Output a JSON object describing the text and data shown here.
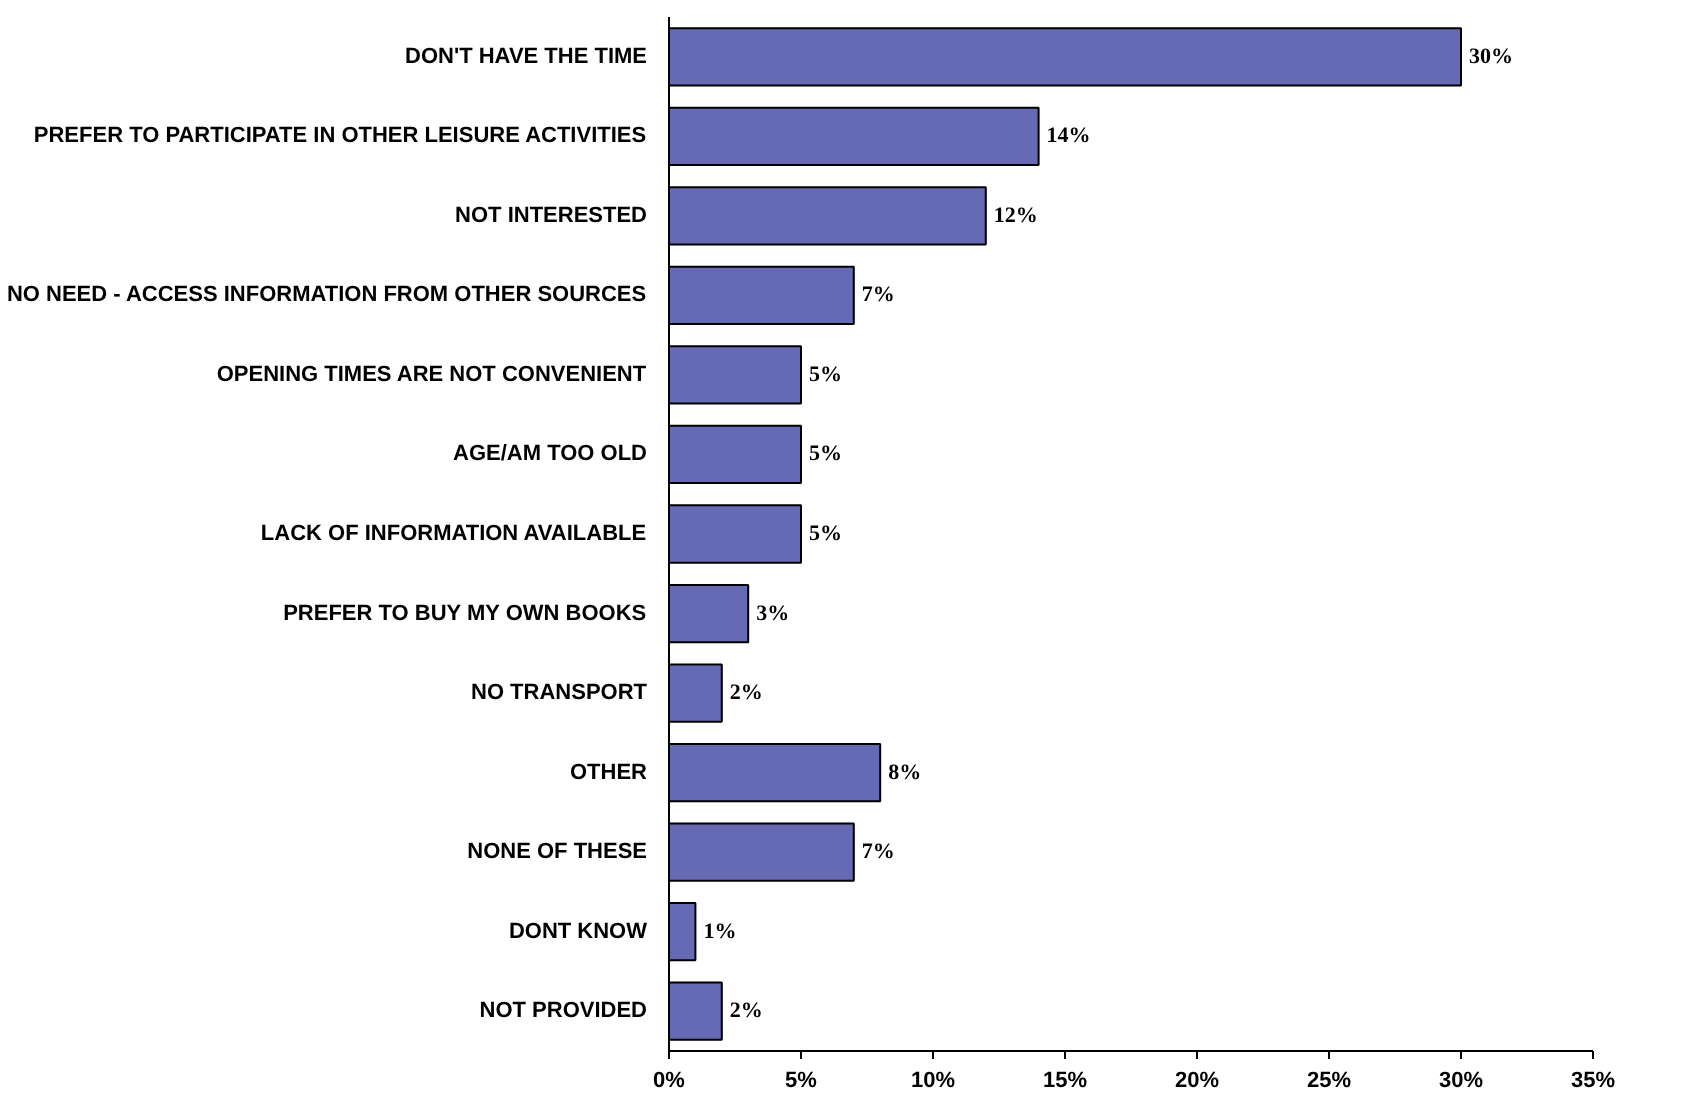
{
  "chart_data": {
    "type": "bar",
    "orientation": "horizontal",
    "categories": [
      "DON'T HAVE THE TIME",
      "PREFER TO PARTICIPATE IN OTHER LEISURE ACTIVITIES",
      "NOT INTERESTED",
      "NO NEED - ACCESS INFORMATION FROM OTHER SOURCES",
      "OPENING TIMES ARE NOT CONVENIENT",
      "AGE/AM TOO OLD",
      "LACK OF INFORMATION AVAILABLE",
      "PREFER TO BUY MY OWN BOOKS",
      "NO TRANSPORT",
      "OTHER",
      "NONE OF THESE",
      "DONT KNOW",
      "NOT PROVIDED"
    ],
    "values": [
      30,
      14,
      12,
      7,
      5,
      5,
      5,
      3,
      2,
      8,
      7,
      1,
      2
    ],
    "value_labels": [
      "30%",
      "14%",
      "12%",
      "7%",
      "5%",
      "5%",
      "5%",
      "3%",
      "2%",
      "8%",
      "7%",
      "1%",
      "2%"
    ],
    "color": "#6669b3",
    "xlim": [
      0,
      35
    ],
    "xticks": [
      {
        "value": 0,
        "label": "0%"
      },
      {
        "value": 5,
        "label": "5%"
      },
      {
        "value": 10,
        "label": "10%"
      },
      {
        "value": 15,
        "label": "15%"
      },
      {
        "value": 20,
        "label": "20%"
      },
      {
        "value": 25,
        "label": "25%"
      },
      {
        "value": 30,
        "label": "30%"
      },
      {
        "value": 35,
        "label": "35%"
      }
    ],
    "grid": false
  }
}
